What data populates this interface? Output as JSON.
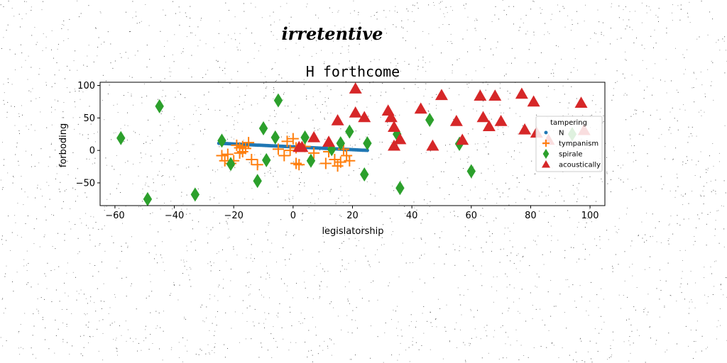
{
  "chart_data": {
    "type": "scatter",
    "suptitle": "irretentive",
    "title": "H forthcome",
    "xlabel": "legislatorship",
    "ylabel": "forboding",
    "xlim": [
      -65,
      105
    ],
    "ylim": [
      -85,
      105
    ],
    "xticks": [
      -60,
      -40,
      -20,
      0,
      20,
      40,
      60,
      80,
      100
    ],
    "yticks": [
      -50,
      0,
      50,
      100
    ],
    "xtick_labels": [
      "−60",
      "−40",
      "−20",
      "0",
      "20",
      "40",
      "60",
      "80",
      "100"
    ],
    "ytick_labels": [
      "−50",
      "0",
      "50",
      "100"
    ],
    "grid": false,
    "legend": {
      "title": "tampering",
      "placement": "right"
    },
    "series": [
      {
        "name": "N",
        "marker": "circle",
        "color": "#1f77b4",
        "line": {
          "x_start": -25,
          "x_end": 25,
          "y_start": 11,
          "y_end": 0,
          "count": 90
        }
      },
      {
        "name": "tympanism",
        "marker": "plus",
        "color": "#ff7f0e",
        "x": [
          -24,
          -23,
          -22,
          -21,
          -20,
          -19,
          -18,
          -18,
          -17,
          -17,
          -16,
          -15,
          -14,
          -12,
          -5,
          -3,
          -2,
          -1,
          0,
          1,
          1,
          2,
          4,
          7,
          11,
          12,
          14,
          15,
          16,
          17,
          18,
          19
        ],
        "y": [
          -8,
          -16,
          -6,
          -20,
          -16,
          8,
          -4,
          4,
          6,
          -2,
          3,
          12,
          -14,
          -22,
          2,
          -8,
          14,
          0,
          18,
          4,
          -20,
          -22,
          6,
          -4,
          -20,
          -2,
          -14,
          -24,
          -18,
          2,
          -8,
          -16
        ]
      },
      {
        "name": "spirale",
        "marker": "diamond",
        "color": "#2ca02c",
        "x": [
          -58,
          -49,
          -45,
          -33,
          -24,
          -21,
          -12,
          -10,
          -9,
          -6,
          -5,
          4,
          6,
          13,
          16,
          19,
          24,
          25,
          35,
          36,
          46,
          56,
          60,
          94
        ],
        "y": [
          19,
          -75,
          68,
          -68,
          15,
          -21,
          -47,
          34,
          -15,
          20,
          77,
          20,
          -16,
          2,
          11,
          29,
          -37,
          11,
          25,
          -58,
          47,
          10,
          -32,
          25
        ]
      },
      {
        "name": "acoustically",
        "marker": "triangle",
        "color": "#d62728",
        "x": [
          2,
          3,
          7,
          12,
          15,
          21,
          21,
          24,
          32,
          33,
          34,
          34,
          36,
          43,
          47,
          50,
          55,
          57,
          63,
          64,
          66,
          68,
          70,
          77,
          78,
          81,
          82,
          86,
          97,
          98
        ],
        "y": [
          5,
          5,
          20,
          13,
          46,
          95,
          58,
          51,
          61,
          51,
          36,
          7,
          17,
          64,
          7,
          85,
          45,
          16,
          84,
          51,
          37,
          84,
          45,
          87,
          32,
          75,
          27,
          16,
          73,
          31
        ]
      }
    ]
  }
}
